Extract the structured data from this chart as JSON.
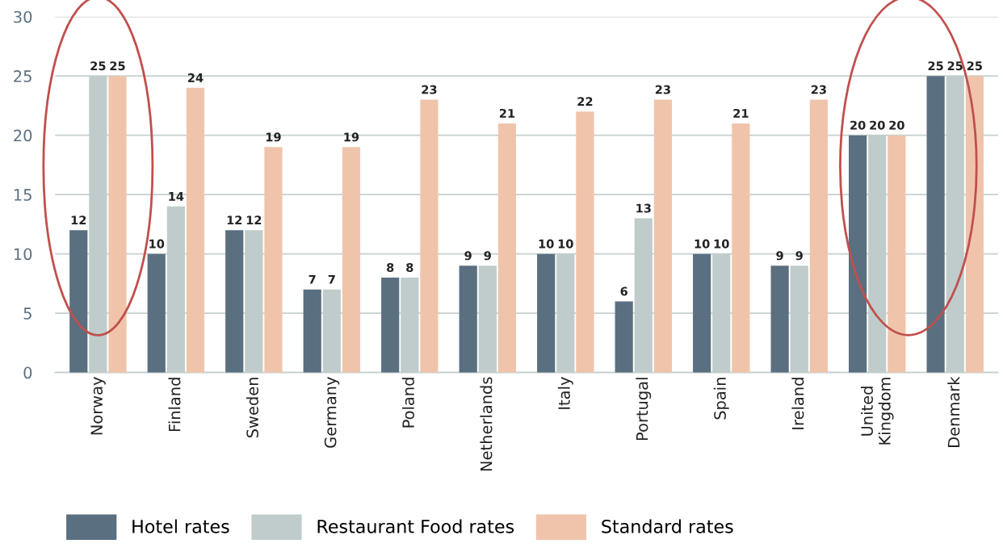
{
  "chart_data": {
    "type": "bar",
    "categories": [
      "Norway",
      "Finland",
      "Sweden",
      "Germany",
      "Poland",
      "Netherlands",
      "Italy",
      "Portugal",
      "Spain",
      "Ireland",
      "United\nKingdom",
      "Denmark"
    ],
    "series": [
      {
        "name": "Hotel rates",
        "color": "#5a6f80",
        "values": [
          12,
          10,
          12,
          7,
          8,
          9,
          10,
          6,
          10,
          9,
          20,
          25
        ]
      },
      {
        "name": "Restaurant Food rates",
        "color": "#bfcccb",
        "values": [
          25,
          14,
          12,
          7,
          8,
          9,
          10,
          13,
          10,
          9,
          20,
          25
        ]
      },
      {
        "name": "Standard rates",
        "color": "#f0c4ab",
        "values": [
          25,
          24,
          19,
          19,
          23,
          21,
          22,
          23,
          21,
          23,
          20,
          25
        ]
      }
    ],
    "ylim": [
      0,
      30
    ],
    "yticks": [
      0,
      5,
      10,
      15,
      20,
      25,
      30
    ],
    "grid": "y",
    "legend": "bottom",
    "data_labels": true
  }
}
